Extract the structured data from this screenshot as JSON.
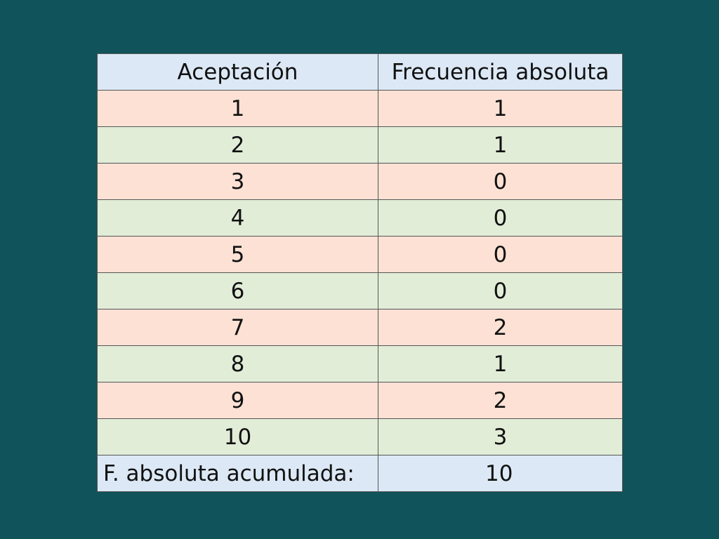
{
  "table": {
    "headers": [
      "Aceptación",
      "Frecuencia absoluta"
    ],
    "rows": [
      {
        "aceptacion": "1",
        "frecuencia": "1"
      },
      {
        "aceptacion": "2",
        "frecuencia": "1"
      },
      {
        "aceptacion": "3",
        "frecuencia": "0"
      },
      {
        "aceptacion": "4",
        "frecuencia": "0"
      },
      {
        "aceptacion": "5",
        "frecuencia": "0"
      },
      {
        "aceptacion": "6",
        "frecuencia": "0"
      },
      {
        "aceptacion": "7",
        "frecuencia": "2"
      },
      {
        "aceptacion": "8",
        "frecuencia": "1"
      },
      {
        "aceptacion": "9",
        "frecuencia": "2"
      },
      {
        "aceptacion": "10",
        "frecuencia": "3"
      }
    ],
    "total_label": "F. absoluta acumulada:",
    "total_value": "10"
  },
  "colors": {
    "background": "#10535a",
    "header_fill": "#dce8f5",
    "odd_row_fill": "#fce1d4",
    "even_row_fill": "#e2edd8",
    "total_fill": "#dce8f5"
  },
  "chart_data": {
    "type": "table",
    "columns": [
      "Aceptación",
      "Frecuencia absoluta"
    ],
    "rows": [
      [
        1,
        1
      ],
      [
        2,
        1
      ],
      [
        3,
        0
      ],
      [
        4,
        0
      ],
      [
        5,
        0
      ],
      [
        6,
        0
      ],
      [
        7,
        2
      ],
      [
        8,
        1
      ],
      [
        9,
        2
      ],
      [
        10,
        3
      ]
    ],
    "footer": [
      "F. absoluta acumulada:",
      10
    ]
  }
}
